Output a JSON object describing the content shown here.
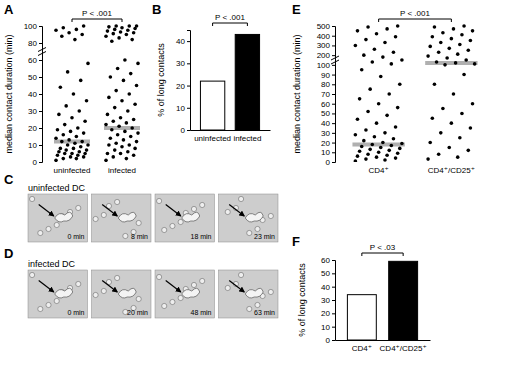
{
  "chart_data": [
    {
      "type": "strip",
      "title": "A",
      "y_label": "median contact duration (min)",
      "categories": [
        "uninfected",
        "infected"
      ],
      "values": [
        [
          1,
          2,
          2,
          3,
          3,
          4,
          4,
          5,
          5,
          5,
          6,
          6,
          7,
          7,
          8,
          8,
          9,
          10,
          10,
          11,
          12,
          12,
          13,
          14,
          15,
          16,
          17,
          18,
          19,
          20,
          22,
          24,
          26,
          28,
          30,
          33,
          36,
          40,
          44,
          48,
          53,
          58,
          84,
          88,
          90,
          92,
          95,
          96,
          98,
          100
        ],
        [
          1,
          2,
          3,
          4,
          5,
          5,
          6,
          7,
          8,
          9,
          10,
          10,
          11,
          12,
          13,
          14,
          15,
          16,
          17,
          18,
          19,
          20,
          21,
          22,
          23,
          24,
          25,
          26,
          28,
          30,
          32,
          34,
          36,
          38,
          40,
          42,
          45,
          48,
          50,
          52,
          55,
          58,
          60,
          82,
          84,
          86,
          88,
          90,
          91,
          92,
          93,
          94,
          95,
          96,
          97,
          98,
          99,
          100,
          100,
          100
        ]
      ],
      "medians": [
        12,
        20
      ],
      "color": "#000000",
      "ylim": [
        0,
        100
      ],
      "yticks": [
        0,
        10,
        20,
        30,
        40,
        50,
        60,
        80,
        100
      ],
      "annotations": [
        "P < .001"
      ]
    },
    {
      "type": "bar",
      "title": "B",
      "y_label": "% of long contacts",
      "categories": [
        "uninfected",
        "infected"
      ],
      "values": [
        22,
        43
      ],
      "colors": [
        "#ffffff",
        "#000000"
      ],
      "ylim": [
        0,
        45
      ],
      "yticks": [
        0,
        10,
        20,
        30,
        40
      ],
      "annotations": [
        "P < .001"
      ]
    },
    {
      "type": "image",
      "title": "C",
      "subtitle": "uninfected DC",
      "categories": [
        "0 min",
        "8 min",
        "18 min",
        "23 min"
      ]
    },
    {
      "type": "image",
      "title": "D",
      "subtitle": "infected DC",
      "categories": [
        "0 min",
        "20 min",
        "48 min",
        "63 min"
      ]
    },
    {
      "type": "strip",
      "title": "E",
      "y_label": "median contact duration (min)",
      "categories": [
        "CD4⁺",
        "CD4⁺/CD25⁺"
      ],
      "values": [
        [
          1,
          2,
          3,
          4,
          5,
          6,
          7,
          8,
          9,
          10,
          11,
          12,
          13,
          14,
          15,
          16,
          17,
          18,
          19,
          20,
          22,
          24,
          26,
          28,
          30,
          33,
          36,
          40,
          44,
          48,
          52,
          56,
          60,
          65,
          70,
          75,
          80,
          88,
          95,
          110,
          130,
          150,
          180,
          200,
          230,
          260,
          300,
          330,
          360,
          390,
          420,
          450,
          470,
          490,
          500
        ],
        [
          3,
          5,
          8,
          12,
          15,
          20,
          25,
          30,
          35,
          40,
          45,
          50,
          55,
          60,
          70,
          80,
          90,
          100,
          110,
          120,
          130,
          150,
          170,
          190,
          210,
          230,
          250,
          270,
          290,
          310,
          330,
          350,
          370,
          390,
          410,
          430,
          450,
          470,
          490,
          500
        ]
      ],
      "medians": [
        18,
        120
      ],
      "color": "#000000",
      "ylim": [
        0,
        500
      ],
      "yticks": [
        0,
        10,
        20,
        30,
        40,
        50,
        60,
        70,
        80,
        90,
        100,
        200,
        300,
        400,
        500
      ],
      "annotations": [
        "P < .001"
      ]
    },
    {
      "type": "bar",
      "title": "F",
      "y_label": "% of long contacts",
      "categories": [
        "CD4⁺",
        "CD4⁺/CD25⁺"
      ],
      "values": [
        34,
        59
      ],
      "colors": [
        "#ffffff",
        "#000000"
      ],
      "ylim": [
        0,
        60
      ],
      "yticks": [
        0,
        10,
        20,
        30,
        40,
        50,
        60
      ],
      "annotations": [
        "P < .03"
      ]
    }
  ]
}
